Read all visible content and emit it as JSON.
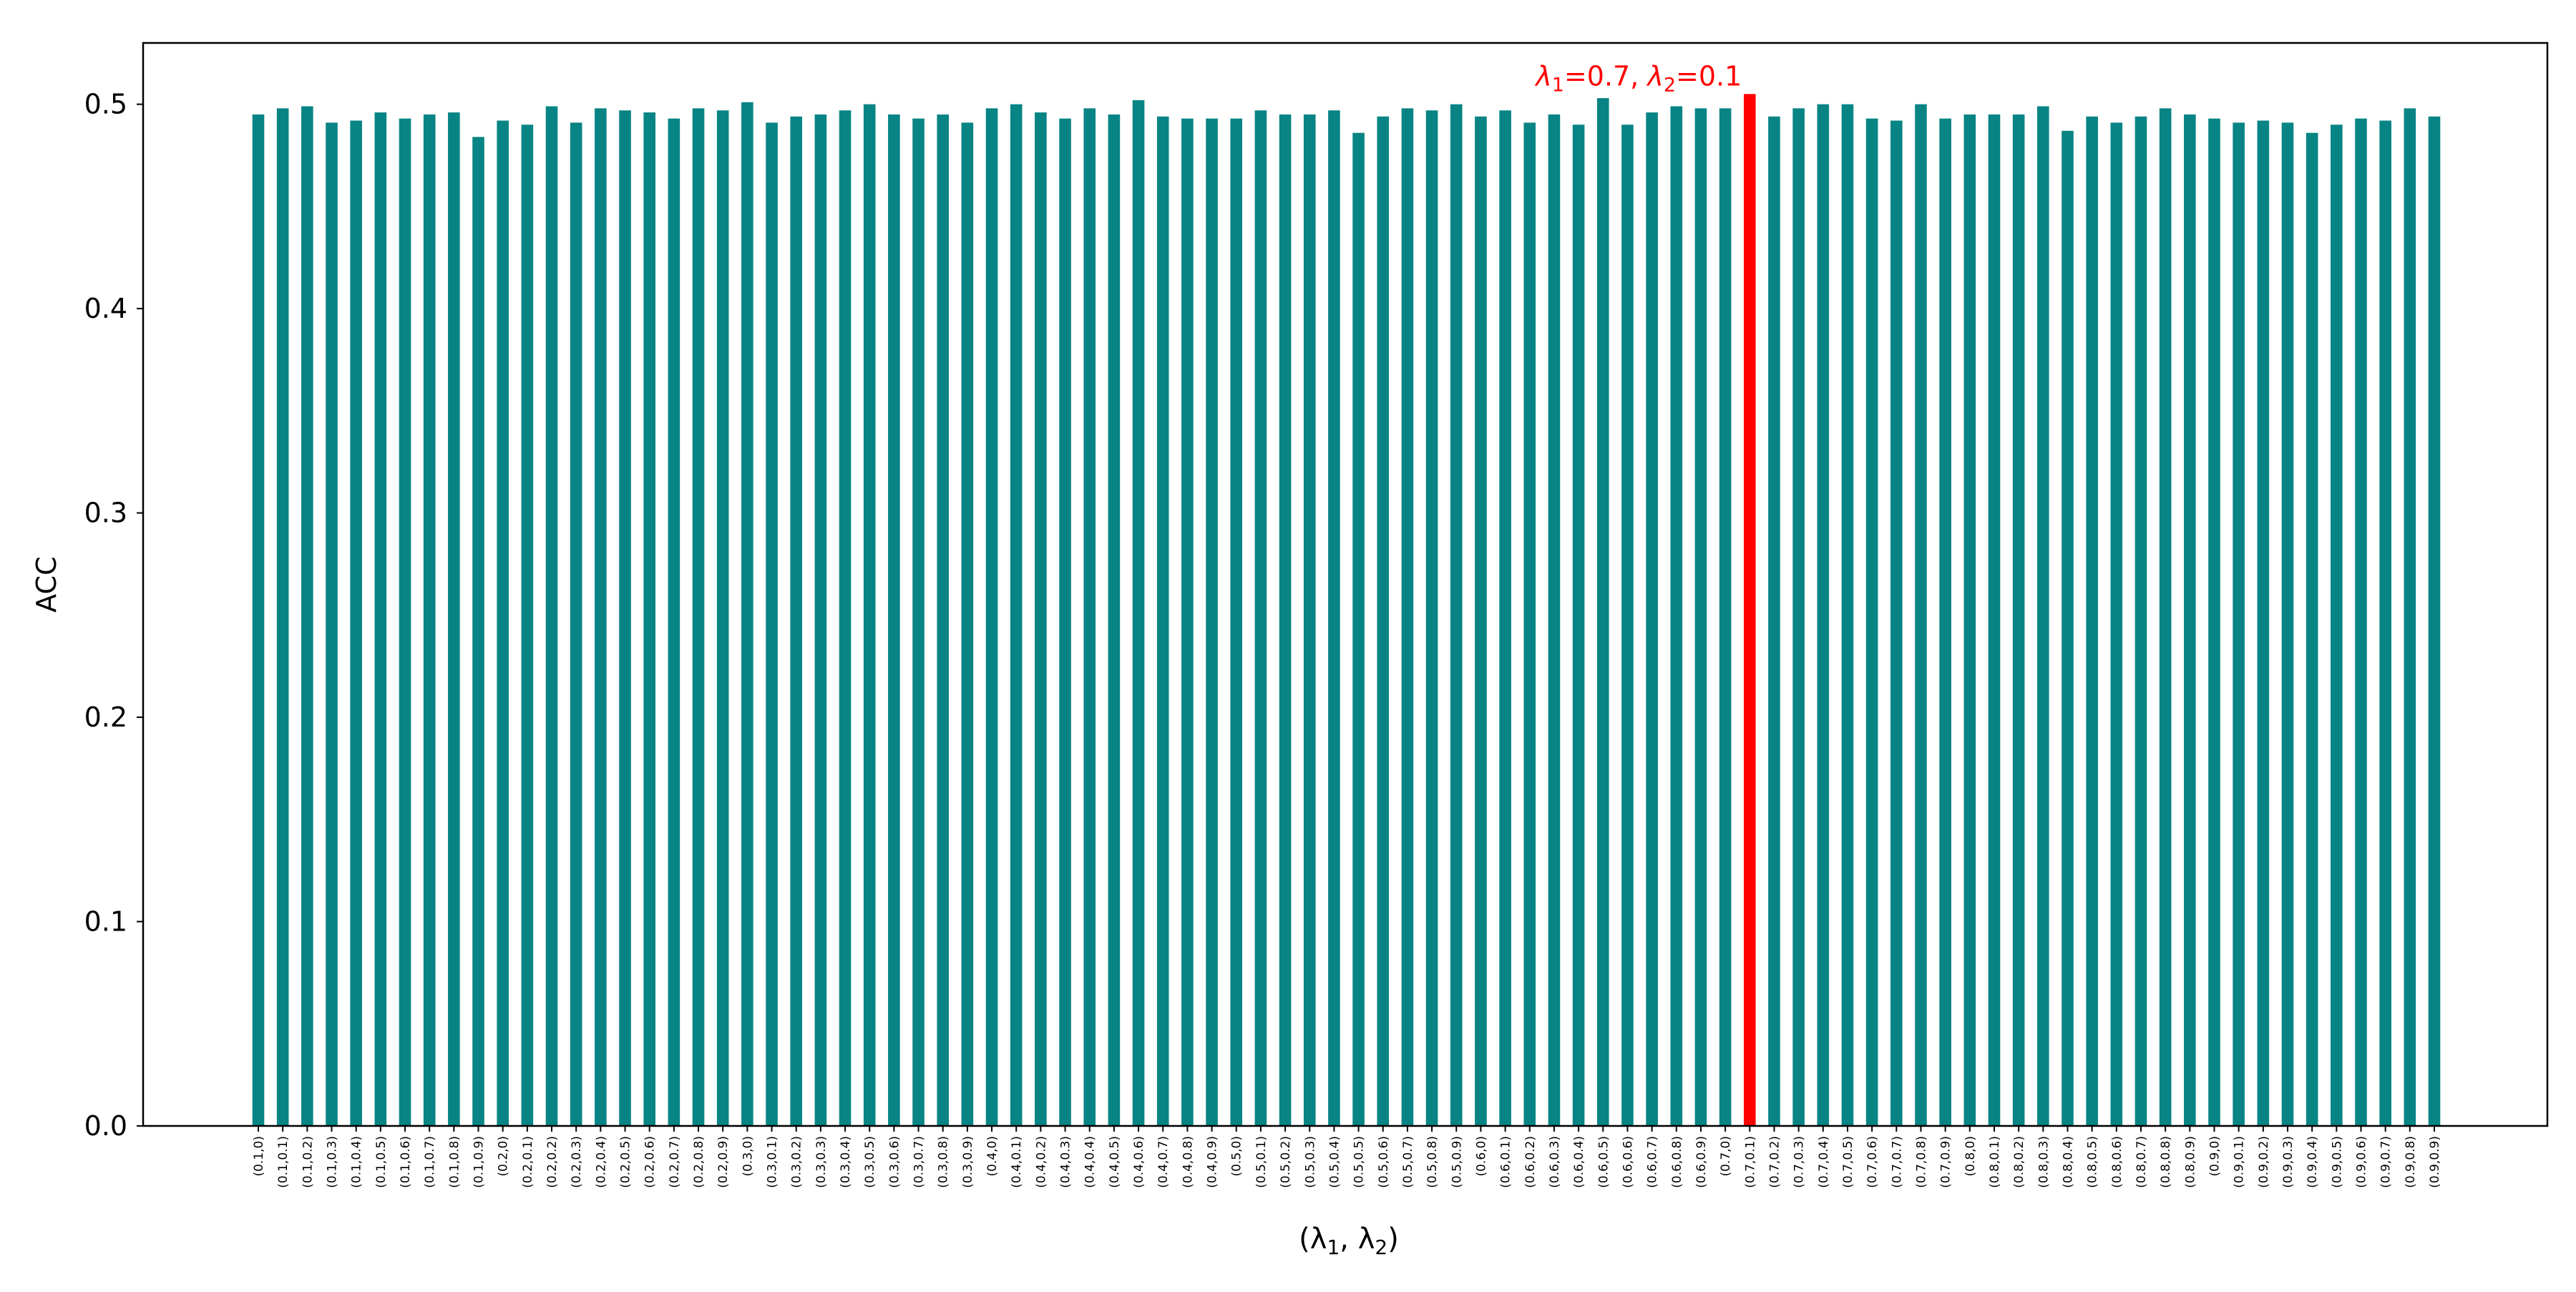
{
  "chart_data": {
    "type": "bar",
    "xlabel_main": "(λ",
    "xlabel_sub1": "1",
    "xlabel_mid": ", λ",
    "xlabel_sub2": "2",
    "xlabel_end": ")",
    "ylabel": "ACC",
    "ylim": [
      0,
      0.53
    ],
    "yticks": [
      "0.0",
      "0.1",
      "0.2",
      "0.3",
      "0.4",
      "0.5"
    ],
    "ytick_values": [
      0,
      0.1,
      0.2,
      0.3,
      0.4,
      0.5
    ],
    "grid": false,
    "bar_color": "#088484",
    "highlight_color": "#ff0000",
    "highlight_index": 61,
    "annotation": {
      "lambda1_symbol": "λ",
      "lambda1_sub": "1",
      "lambda1_value": "=0.7, ",
      "lambda2_symbol": "λ",
      "lambda2_sub": "2",
      "lambda2_value": "=0.1"
    },
    "categories": [
      "(0.1,0)",
      "(0.1,0.1)",
      "(0.1,0.2)",
      "(0.1,0.3)",
      "(0.1,0.4)",
      "(0.1,0.5)",
      "(0.1,0.6)",
      "(0.1,0.7)",
      "(0.1,0.8)",
      "(0.1,0.9)",
      "(0.2,0)",
      "(0.2,0.1)",
      "(0.2,0.2)",
      "(0.2,0.3)",
      "(0.2,0.4)",
      "(0.2,0.5)",
      "(0.2,0.6)",
      "(0.2,0.7)",
      "(0.2,0.8)",
      "(0.2,0.9)",
      "(0.3,0)",
      "(0.3,0.1)",
      "(0.3,0.2)",
      "(0.3,0.3)",
      "(0.3,0.4)",
      "(0.3,0.5)",
      "(0.3,0.6)",
      "(0.3,0.7)",
      "(0.3,0.8)",
      "(0.3,0.9)",
      "(0.4,0)",
      "(0.4,0.1)",
      "(0.4,0.2)",
      "(0.4,0.3)",
      "(0.4,0.4)",
      "(0.4,0.5)",
      "(0.4,0.6)",
      "(0.4,0.7)",
      "(0.4,0.8)",
      "(0.4,0.9)",
      "(0.5,0)",
      "(0.5,0.1)",
      "(0.5,0.2)",
      "(0.5,0.3)",
      "(0.5,0.4)",
      "(0.5,0.5)",
      "(0.5,0.6)",
      "(0.5,0.7)",
      "(0.5,0.8)",
      "(0.5,0.9)",
      "(0.6,0)",
      "(0.6,0.1)",
      "(0.6,0.2)",
      "(0.6,0.3)",
      "(0.6,0.4)",
      "(0.6,0.5)",
      "(0.6,0.6)",
      "(0.6,0.7)",
      "(0.6,0.8)",
      "(0.6,0.9)",
      "(0.7,0)",
      "(0.7,0.1)",
      "(0.7,0.2)",
      "(0.7,0.3)",
      "(0.7,0.4)",
      "(0.7,0.5)",
      "(0.7,0.6)",
      "(0.7,0.7)",
      "(0.7,0.8)",
      "(0.7,0.9)",
      "(0.8,0)",
      "(0.8,0.1)",
      "(0.8,0.2)",
      "(0.8,0.3)",
      "(0.8,0.4)",
      "(0.8,0.5)",
      "(0.8,0.6)",
      "(0.8,0.7)",
      "(0.8,0.8)",
      "(0.8,0.9)",
      "(0.9,0)",
      "(0.9,0.1)",
      "(0.9,0.2)",
      "(0.9,0.3)",
      "(0.9,0.4)",
      "(0.9,0.5)",
      "(0.9,0.6)",
      "(0.9,0.7)",
      "(0.9,0.8)",
      "(0.9,0.9)"
    ],
    "values": [
      0.495,
      0.498,
      0.499,
      0.491,
      0.492,
      0.496,
      0.493,
      0.495,
      0.496,
      0.484,
      0.492,
      0.49,
      0.499,
      0.491,
      0.498,
      0.497,
      0.496,
      0.493,
      0.498,
      0.497,
      0.501,
      0.491,
      0.494,
      0.495,
      0.497,
      0.5,
      0.495,
      0.493,
      0.495,
      0.491,
      0.498,
      0.5,
      0.496,
      0.493,
      0.498,
      0.495,
      0.502,
      0.494,
      0.493,
      0.493,
      0.493,
      0.497,
      0.495,
      0.495,
      0.497,
      0.486,
      0.494,
      0.498,
      0.497,
      0.5,
      0.494,
      0.497,
      0.491,
      0.495,
      0.49,
      0.503,
      0.49,
      0.496,
      0.499,
      0.498,
      0.498,
      0.505,
      0.494,
      0.498,
      0.5,
      0.5,
      0.493,
      0.492,
      0.5,
      0.493,
      0.495,
      0.495,
      0.495,
      0.499,
      0.487,
      0.494,
      0.491,
      0.494,
      0.498,
      0.495,
      0.493,
      0.491,
      0.492,
      0.491,
      0.486,
      0.49,
      0.493,
      0.492,
      0.498,
      0.494
    ]
  }
}
